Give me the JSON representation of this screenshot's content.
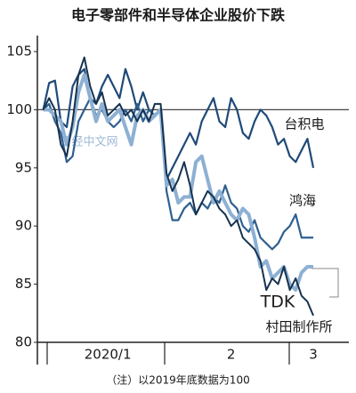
{
  "chart_data": {
    "type": "line",
    "title": "电子零部件和半导体企业股价下跌",
    "note": "（注）以2019年底数据为100",
    "watermark": "日经中文网",
    "x": [
      0,
      1,
      2,
      3,
      4,
      5,
      6,
      7,
      8,
      9,
      10,
      11,
      12,
      13,
      14,
      15,
      16,
      17,
      18,
      19,
      20,
      21,
      22,
      23,
      24,
      25,
      26,
      27,
      28,
      29,
      30,
      31,
      32,
      33,
      34,
      35,
      36,
      37,
      38,
      39,
      40,
      41,
      42,
      43,
      44,
      45,
      46
    ],
    "xlim": [
      -1,
      51
    ],
    "xticks": [
      {
        "value": 11,
        "label": "2020/1"
      },
      {
        "value": 32,
        "label": "2"
      },
      {
        "value": 46,
        "label": "3"
      }
    ],
    "ylim": [
      80,
      105
    ],
    "yticks": [
      80,
      85,
      90,
      95,
      100,
      105
    ],
    "reference_line": 100,
    "series": [
      {
        "name": "台积电",
        "color": "#1f4a78",
        "width": 2.2,
        "values": [
          100,
          102.3,
          102.5,
          99,
          98.5,
          102,
          103,
          103.5,
          101,
          100.5,
          102,
          103,
          102,
          101,
          103.5,
          102,
          100,
          101.5,
          100,
          99.5,
          100,
          94,
          95,
          96,
          97,
          98,
          97,
          99,
          100,
          101,
          99,
          98.5,
          101,
          100,
          98,
          97.5,
          99,
          100,
          99.5,
          98.5,
          97,
          97.5,
          96,
          95.5,
          96.5,
          97.5,
          95
        ]
      },
      {
        "name": "鸿海",
        "color": "#2d5f90",
        "width": 2.2,
        "values": [
          100,
          100.5,
          99,
          98,
          95.5,
          96,
          99,
          100,
          101,
          99.5,
          100,
          99,
          98.5,
          99,
          100,
          99,
          100.5,
          99,
          100,
          99.5,
          100,
          93,
          90.5,
          90.5,
          91.5,
          92,
          91,
          92,
          91.5,
          92.5,
          92,
          93.5,
          92,
          91.5,
          90,
          89.5,
          90.5,
          89,
          88.5,
          88,
          88.5,
          89.5,
          90,
          91,
          89,
          89,
          89
        ]
      },
      {
        "name": "TDK",
        "color": "#8db0d3",
        "width": 4,
        "values": [
          100,
          100,
          99.5,
          99,
          97,
          98.5,
          101.5,
          103,
          101,
          99,
          100.5,
          99,
          99.5,
          100,
          98.5,
          97,
          99.5,
          100,
          99,
          99.5,
          100,
          93.5,
          94,
          92,
          92.5,
          92.5,
          95.5,
          96,
          94,
          92,
          93,
          92,
          91,
          90.5,
          91.5,
          91,
          89,
          86.5,
          87,
          85.5,
          86,
          86.5,
          85,
          84.5,
          86,
          86.5,
          86.5
        ]
      },
      {
        "name": "村田制作所",
        "color": "#16324f",
        "width": 2,
        "values": [
          100,
          101,
          100,
          97,
          96,
          99,
          103,
          104.5,
          102,
          100.5,
          101.5,
          99.5,
          100,
          100.5,
          99.5,
          100,
          99,
          100,
          99,
          100.5,
          100.5,
          94.5,
          93,
          94,
          95.5,
          93.5,
          91,
          92,
          93,
          92.5,
          91.5,
          91,
          90,
          90.5,
          89,
          88.5,
          88,
          87,
          84.5,
          85.5,
          85,
          86.5,
          84.5,
          85.5,
          84,
          83.5,
          82.3
        ]
      }
    ]
  }
}
